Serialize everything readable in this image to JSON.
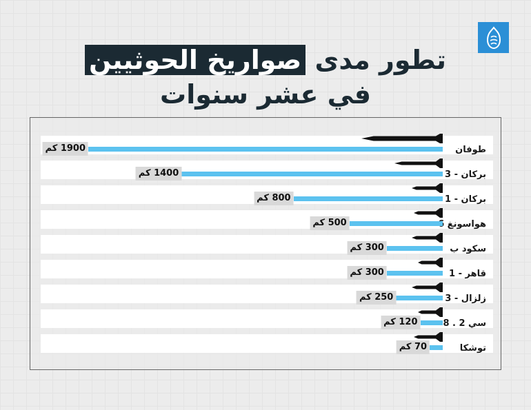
{
  "logo": {
    "name": "aljazeera-logo",
    "color": "#2b8fd6"
  },
  "title": {
    "line1_prefix": "تطور مدى",
    "line1_highlight": "صواريخ الحوثيين",
    "line2": "في عشر سنوات"
  },
  "colors": {
    "bar": "#5cc2ef",
    "highlight_bg": "#1b2a33",
    "value_bg": "#d9d9d9"
  },
  "rows": [
    {
      "label": "طوفان",
      "value": 1900,
      "value_label": "1900 كم",
      "missile_len": 118
    },
    {
      "label": "بركان - 3",
      "value": 1400,
      "value_label": "1400 كم",
      "missile_len": 70
    },
    {
      "label": "بركان - 1",
      "value": 800,
      "value_label": "800 كم",
      "missile_len": 45
    },
    {
      "label": "هواسونغ 6",
      "value": 500,
      "value_label": "500 كم",
      "missile_len": 42
    },
    {
      "label": "سكود ب",
      "value": 300,
      "value_label": "300 كم",
      "missile_len": 45
    },
    {
      "label": "قاهر - 1",
      "value": 300,
      "value_label": "300 كم",
      "missile_len": 36
    },
    {
      "label": "زلزال - 3",
      "value": 250,
      "value_label": "250 كم",
      "missile_len": 45
    },
    {
      "label": "سي 2 . 8",
      "value": 120,
      "value_label": "120 كم",
      "missile_len": 36
    },
    {
      "label": "توشكا",
      "value": 70,
      "value_label": "70 كم",
      "missile_len": 42
    }
  ],
  "chart_data": {
    "type": "bar",
    "orientation": "horizontal",
    "title": "تطور مدى صواريخ الحوثيين في عشر سنوات",
    "categories": [
      "طوفان",
      "بركان - 3",
      "بركان - 1",
      "هواسونغ 6",
      "سكود ب",
      "قاهر - 1",
      "زلزال - 3",
      "سي 2 . 8",
      "توشكا"
    ],
    "values": [
      1900,
      1400,
      800,
      500,
      300,
      300,
      250,
      120,
      70
    ],
    "unit": "كم",
    "xlabel": "",
    "ylabel": "",
    "grid": false,
    "legend": null
  }
}
